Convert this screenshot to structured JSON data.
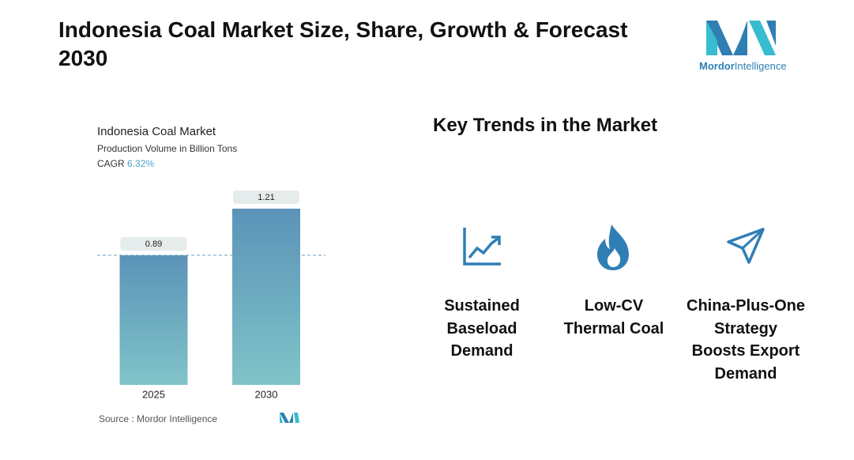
{
  "title": "Indonesia Coal Market Size, Share, Growth & Forecast 2030",
  "logo": {
    "brand": "Mordor",
    "suffix": "Intelligence"
  },
  "chart_data": {
    "type": "bar",
    "title": "Indonesia Coal Market",
    "subtitle": "Production Volume in Billion Tons",
    "cagr_label": "CAGR",
    "cagr_value": "6.32%",
    "categories": [
      "2025",
      "2030"
    ],
    "values": [
      0.89,
      1.21
    ],
    "color_top": "#5b93b8",
    "color_bottom": "#80c4c9",
    "source": "Source :  Mordor Intelligence"
  },
  "key_trends": {
    "heading": "Key Trends in the Market",
    "items": [
      "Sustained Baseload Demand",
      "Low-CV Thermal Coal",
      "China-Plus-One Strategy Boosts Export Demand"
    ]
  }
}
